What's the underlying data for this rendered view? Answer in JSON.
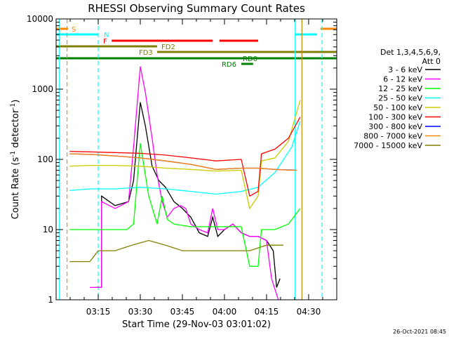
{
  "chart_data": {
    "type": "line",
    "title": "RHESSI Observing Summary Count Rates",
    "xlabel": "Start Time (29-Nov-03 03:01:02)",
    "ylabel_prefix": "Count Rate (s",
    "ylabel_sup": "-1",
    "ylabel_suffix": " detector",
    "ylabel_end": ")",
    "xlim": [
      3.0,
      4.667
    ],
    "ylim": [
      1,
      10000
    ],
    "yscale": "log",
    "x_ticks": [
      {
        "value": 3.25,
        "label": "03:15"
      },
      {
        "value": 3.5,
        "label": "03:30"
      },
      {
        "value": 3.75,
        "label": "03:45"
      },
      {
        "value": 4.0,
        "label": "04:00"
      },
      {
        "value": 4.25,
        "label": "04:15"
      },
      {
        "value": 4.5,
        "label": "04:30"
      }
    ],
    "y_ticks": [
      {
        "value": 1,
        "label": "1"
      },
      {
        "value": 10,
        "label": "10"
      },
      {
        "value": 100,
        "label": "100"
      },
      {
        "value": 1000,
        "label": "1000"
      },
      {
        "value": 10000,
        "label": "10000"
      }
    ],
    "legend_header": [
      "Det 1,3,4,5,6,9,",
      "Att 0"
    ],
    "legend_position": "right",
    "series": [
      {
        "name": "3 - 6 keV",
        "color": "#000000",
        "points": [
          [
            3.23,
            1.5
          ],
          [
            3.27,
            1.5
          ],
          [
            3.27,
            30
          ],
          [
            3.35,
            22
          ],
          [
            3.43,
            25
          ],
          [
            3.46,
            50
          ],
          [
            3.5,
            650
          ],
          [
            3.53,
            300
          ],
          [
            3.57,
            80
          ],
          [
            3.61,
            50
          ],
          [
            3.65,
            40
          ],
          [
            3.7,
            25
          ],
          [
            3.75,
            20
          ],
          [
            3.8,
            15
          ],
          [
            3.85,
            9
          ],
          [
            3.9,
            8
          ],
          [
            3.93,
            15
          ],
          [
            3.96,
            8
          ],
          [
            4.0,
            10
          ],
          [
            4.05,
            12
          ],
          [
            4.1,
            9
          ],
          [
            4.15,
            8
          ],
          [
            4.2,
            8
          ],
          [
            4.25,
            7
          ],
          [
            4.29,
            5
          ],
          [
            4.31,
            1.5
          ],
          [
            4.33,
            2
          ]
        ]
      },
      {
        "name": "6 - 12 keV",
        "color": "#ff00ff",
        "points": [
          [
            3.2,
            1.5
          ],
          [
            3.27,
            1.5
          ],
          [
            3.27,
            25
          ],
          [
            3.35,
            20
          ],
          [
            3.43,
            25
          ],
          [
            3.46,
            150
          ],
          [
            3.5,
            2100
          ],
          [
            3.53,
            900
          ],
          [
            3.57,
            200
          ],
          [
            3.6,
            60
          ],
          [
            3.63,
            25
          ],
          [
            3.66,
            15
          ],
          [
            3.7,
            20
          ],
          [
            3.74,
            22
          ],
          [
            3.77,
            20
          ],
          [
            3.8,
            12
          ],
          [
            3.85,
            10
          ],
          [
            3.9,
            9
          ],
          [
            3.93,
            20
          ],
          [
            3.96,
            10
          ],
          [
            4.0,
            10
          ],
          [
            4.05,
            12
          ],
          [
            4.1,
            9
          ],
          [
            4.15,
            8
          ],
          [
            4.2,
            8
          ],
          [
            4.25,
            7
          ],
          [
            4.28,
            2
          ],
          [
            4.32,
            1
          ]
        ]
      },
      {
        "name": "12 - 25 keV",
        "color": "#00ff00",
        "points": [
          [
            3.08,
            10
          ],
          [
            3.2,
            10
          ],
          [
            3.3,
            10
          ],
          [
            3.42,
            10
          ],
          [
            3.46,
            12
          ],
          [
            3.5,
            170
          ],
          [
            3.55,
            30
          ],
          [
            3.6,
            12
          ],
          [
            3.63,
            30
          ],
          [
            3.66,
            14
          ],
          [
            3.7,
            12
          ],
          [
            3.8,
            11
          ],
          [
            3.9,
            11
          ],
          [
            4.0,
            11
          ],
          [
            4.1,
            11
          ],
          [
            4.15,
            3
          ],
          [
            4.2,
            3
          ],
          [
            4.22,
            10
          ],
          [
            4.3,
            10
          ],
          [
            4.38,
            12
          ],
          [
            4.45,
            20
          ]
        ]
      },
      {
        "name": "25 - 50 keV",
        "color": "#00ffff",
        "points": [
          [
            3.08,
            36
          ],
          [
            3.2,
            38
          ],
          [
            3.35,
            38
          ],
          [
            3.5,
            40
          ],
          [
            3.65,
            38
          ],
          [
            3.8,
            35
          ],
          [
            3.95,
            32
          ],
          [
            4.1,
            35
          ],
          [
            4.2,
            40
          ],
          [
            4.3,
            65
          ],
          [
            4.4,
            150
          ],
          [
            4.45,
            350
          ]
        ]
      },
      {
        "name": "50 - 100 keV",
        "color": "#cccc00",
        "points": [
          [
            3.08,
            80
          ],
          [
            3.2,
            82
          ],
          [
            3.35,
            82
          ],
          [
            3.5,
            80
          ],
          [
            3.65,
            75
          ],
          [
            3.8,
            72
          ],
          [
            3.95,
            68
          ],
          [
            4.1,
            70
          ],
          [
            4.15,
            20
          ],
          [
            4.2,
            30
          ],
          [
            4.22,
            95
          ],
          [
            4.3,
            105
          ],
          [
            4.38,
            180
          ],
          [
            4.45,
            700
          ]
        ]
      },
      {
        "name": "100 - 300 keV",
        "color": "#ff0000",
        "points": [
          [
            3.08,
            130
          ],
          [
            3.2,
            128
          ],
          [
            3.35,
            125
          ],
          [
            3.5,
            122
          ],
          [
            3.65,
            115
          ],
          [
            3.8,
            105
          ],
          [
            3.95,
            95
          ],
          [
            4.1,
            100
          ],
          [
            4.15,
            30
          ],
          [
            4.2,
            35
          ],
          [
            4.22,
            120
          ],
          [
            4.3,
            140
          ],
          [
            4.38,
            200
          ],
          [
            4.45,
            400
          ]
        ]
      },
      {
        "name": "300 - 800 keV",
        "color": "#0000ff",
        "points": [
          [
            3.08,
            120
          ],
          [
            3.2,
            118
          ],
          [
            3.35,
            112
          ],
          [
            3.5,
            105
          ],
          [
            3.65,
            95
          ],
          [
            3.8,
            85
          ],
          [
            3.95,
            72
          ],
          [
            4.1,
            75
          ],
          [
            4.2,
            75
          ],
          [
            4.3,
            72
          ],
          [
            4.43,
            70
          ]
        ]
      },
      {
        "name": "800 - 7000 keV",
        "color": "#ff8800",
        "points": [
          [
            3.08,
            120
          ],
          [
            3.2,
            118
          ],
          [
            3.35,
            112
          ],
          [
            3.5,
            105
          ],
          [
            3.65,
            95
          ],
          [
            3.8,
            85
          ],
          [
            3.95,
            72
          ],
          [
            4.1,
            75
          ],
          [
            4.2,
            75
          ],
          [
            4.3,
            72
          ],
          [
            4.4,
            70
          ],
          [
            4.43,
            70
          ]
        ]
      },
      {
        "name": "7000 - 15000 keV",
        "color": "#808000",
        "points": [
          [
            3.08,
            3.5
          ],
          [
            3.2,
            3.5
          ],
          [
            3.25,
            5
          ],
          [
            3.35,
            5
          ],
          [
            3.45,
            6
          ],
          [
            3.55,
            7
          ],
          [
            3.65,
            6
          ],
          [
            3.75,
            5
          ],
          [
            3.85,
            5
          ],
          [
            3.95,
            5
          ],
          [
            4.05,
            5
          ],
          [
            4.15,
            5
          ],
          [
            4.25,
            6
          ],
          [
            4.35,
            6
          ]
        ]
      }
    ],
    "flags": [
      {
        "label": "S",
        "color": "#ff8800",
        "y_row": 0,
        "segments": [
          [
            3.0,
            3.07
          ],
          [
            4.57,
            4.667
          ]
        ]
      },
      {
        "label": "N",
        "color": "#00ffff",
        "y_row": 1,
        "segments": [
          [
            3.0,
            3.25
          ],
          [
            4.42,
            4.55
          ]
        ]
      },
      {
        "label": "F",
        "color": "#ff0000",
        "y_row": 2,
        "segments": [
          [
            3.33,
            3.93
          ],
          [
            3.97,
            4.2
          ]
        ]
      },
      {
        "label": "FD2",
        "color": "#808000",
        "y_row": 3,
        "segments": [
          [
            3.0,
            3.6
          ]
        ]
      },
      {
        "label": "FD3",
        "color": "#808000",
        "y_row": 4,
        "segments": [
          [
            3.6,
            4.667
          ]
        ]
      },
      {
        "label": "RD0",
        "color": "#008000",
        "y_row": 5,
        "segments": [
          [
            3.0,
            4.667
          ]
        ]
      },
      {
        "label": "RD6",
        "color": "#008000",
        "y_row": 6,
        "segments": [
          [
            4.1,
            4.17
          ]
        ]
      }
    ],
    "vlines": [
      {
        "x": 3.02,
        "color": "#00ffff",
        "dash": false
      },
      {
        "x": 3.065,
        "color": "#ff8800",
        "dash": true
      },
      {
        "x": 3.25,
        "color": "#00ffff",
        "dash": true
      },
      {
        "x": 4.42,
        "color": "#00ffff",
        "dash": false
      },
      {
        "x": 4.46,
        "color": "#cc8800",
        "dash": false
      },
      {
        "x": 4.58,
        "color": "#00ffff",
        "dash": true
      }
    ]
  },
  "timestamp": "26-Oct-2021 08:45"
}
